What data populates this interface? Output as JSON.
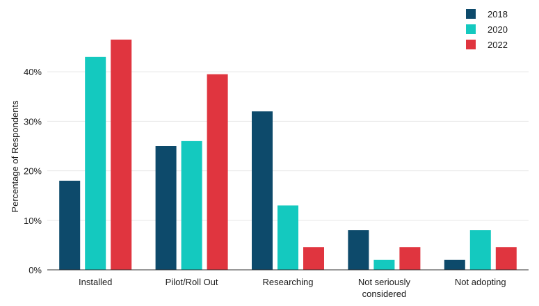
{
  "chart_data": {
    "type": "bar",
    "title": "",
    "xlabel": "",
    "ylabel": "Percentage of Respondents",
    "categories": [
      [
        "Installed"
      ],
      [
        "Pilot/Roll Out"
      ],
      [
        "Researching"
      ],
      [
        "Not seriously",
        "considered"
      ],
      [
        "Not adopting"
      ]
    ],
    "series": [
      {
        "name": "2018",
        "color": "#0d4a6b",
        "values": [
          18,
          25,
          32,
          8,
          2
        ]
      },
      {
        "name": "2020",
        "color": "#14c9bf",
        "values": [
          43,
          26,
          13,
          2,
          8
        ]
      },
      {
        "name": "2022",
        "color": "#e0353f",
        "values": [
          46.5,
          39.5,
          4.6,
          4.6,
          4.6
        ]
      }
    ],
    "yticks": [
      0,
      10,
      20,
      30,
      40
    ],
    "ytick_labels": [
      "0%",
      "10%",
      "20%",
      "30%",
      "40%"
    ],
    "ylim": [
      0,
      50
    ],
    "grid": true,
    "legend_position": "top-right"
  }
}
